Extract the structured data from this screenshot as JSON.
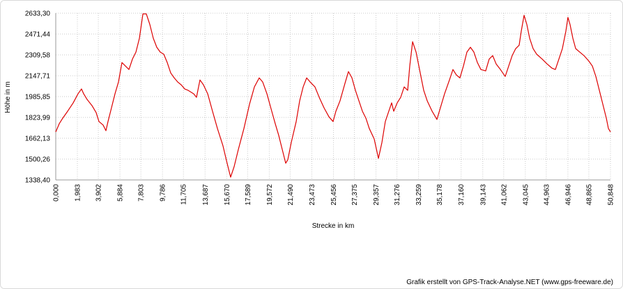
{
  "chart_data": {
    "type": "line",
    "y_label": "Höhe in m",
    "x_label": "Strecke in km",
    "credit": "Grafik erstellt von GPS-Track-Analyse.NET (www.gps-freeware.de)",
    "color": "#dd0000",
    "grid": true,
    "xlim": [
      0,
      50.848
    ],
    "ylim": [
      1338.4,
      2633.3
    ],
    "xticks": [
      {
        "value": 0,
        "label": "0,000"
      },
      {
        "value": 1.983,
        "label": "1,983"
      },
      {
        "value": 3.902,
        "label": "3,902"
      },
      {
        "value": 5.884,
        "label": "5,884"
      },
      {
        "value": 7.803,
        "label": "7,803"
      },
      {
        "value": 9.786,
        "label": "9,786"
      },
      {
        "value": 11.705,
        "label": "11,705"
      },
      {
        "value": 13.687,
        "label": "13,687"
      },
      {
        "value": 15.67,
        "label": "15,670"
      },
      {
        "value": 17.589,
        "label": "17,589"
      },
      {
        "value": 19.572,
        "label": "19,572"
      },
      {
        "value": 21.49,
        "label": "21,490"
      },
      {
        "value": 23.473,
        "label": "23,473"
      },
      {
        "value": 25.456,
        "label": "25,456"
      },
      {
        "value": 27.375,
        "label": "27,375"
      },
      {
        "value": 29.357,
        "label": "29,357"
      },
      {
        "value": 31.276,
        "label": "31,276"
      },
      {
        "value": 33.259,
        "label": "33,259"
      },
      {
        "value": 35.178,
        "label": "35,178"
      },
      {
        "value": 37.16,
        "label": "37,160"
      },
      {
        "value": 39.143,
        "label": "39,143"
      },
      {
        "value": 41.062,
        "label": "41,062"
      },
      {
        "value": 43.045,
        "label": "43,045"
      },
      {
        "value": 44.963,
        "label": "44,963"
      },
      {
        "value": 46.946,
        "label": "46,946"
      },
      {
        "value": 48.865,
        "label": "48,865"
      },
      {
        "value": 50.848,
        "label": "50,848"
      }
    ],
    "yticks": [
      {
        "value": 1338.4,
        "label": "1338,40"
      },
      {
        "value": 1500.26,
        "label": "1500,26"
      },
      {
        "value": 1662.13,
        "label": "1662,13"
      },
      {
        "value": 1823.99,
        "label": "1823,99"
      },
      {
        "value": 1985.85,
        "label": "1985,85"
      },
      {
        "value": 2147.71,
        "label": "2147,71"
      },
      {
        "value": 2309.58,
        "label": "2309,58"
      },
      {
        "value": 2471.44,
        "label": "2471,44"
      },
      {
        "value": 2633.3,
        "label": "2633,30"
      }
    ],
    "x": [
      0,
      0.32,
      0.64,
      1.09,
      1.6,
      2.04,
      2.36,
      2.56,
      2.87,
      3.32,
      3.7,
      3.96,
      4.34,
      4.6,
      4.79,
      5.11,
      5.43,
      5.75,
      6.07,
      6.39,
      6.71,
      7.03,
      7.35,
      7.67,
      7.99,
      8.3,
      8.62,
      8.94,
      9.26,
      9.58,
      9.9,
      10.22,
      10.54,
      10.86,
      11.18,
      11.5,
      11.82,
      12.14,
      12.65,
      12.9,
      13.22,
      13.54,
      13.93,
      14.37,
      14.82,
      15.33,
      15.71,
      16.03,
      16.35,
      16.74,
      17.25,
      17.76,
      18.21,
      18.65,
      18.97,
      19.36,
      19.8,
      20.12,
      20.44,
      20.76,
      21.08,
      21.27,
      21.59,
      22.04,
      22.36,
      22.68,
      23,
      23.32,
      23.76,
      24.15,
      24.59,
      25.04,
      25.42,
      25.68,
      26.06,
      26.51,
      26.83,
      27.15,
      27.47,
      27.79,
      28.11,
      28.43,
      28.74,
      29.19,
      29.58,
      29.9,
      30.21,
      30.53,
      30.79,
      30.98,
      31.3,
      31.62,
      31.94,
      32.26,
      32.45,
      32.71,
      33.03,
      33.41,
      33.73,
      34.05,
      34.5,
      34.94,
      35.26,
      35.64,
      36.09,
      36.41,
      36.73,
      37.05,
      37.37,
      37.69,
      38.01,
      38.33,
      38.65,
      38.97,
      39.41,
      39.73,
      40.05,
      40.37,
      40.76,
      41.2,
      41.52,
      41.84,
      42.16,
      42.48,
      42.67,
      42.93,
      43.18,
      43.44,
      43.76,
      44.08,
      44.59,
      45.04,
      45.48,
      45.8,
      46.12,
      46.44,
      46.76,
      46.95,
      47.14,
      47.4,
      47.66,
      48.04,
      48.42,
      48.87,
      49.19,
      49.51,
      49.83,
      50.15,
      50.47,
      50.66,
      50.85
    ],
    "values": [
      1711,
      1775,
      1818,
      1872,
      1937,
      2007,
      2045,
      2007,
      1964,
      1916,
      1862,
      1792,
      1765,
      1721,
      1792,
      1899,
      2007,
      2099,
      2250,
      2223,
      2196,
      2277,
      2331,
      2439,
      2628,
      2628,
      2547,
      2439,
      2369,
      2331,
      2315,
      2250,
      2169,
      2131,
      2099,
      2077,
      2045,
      2034,
      2007,
      1980,
      2115,
      2077,
      2007,
      1872,
      1738,
      1603,
      1468,
      1360,
      1441,
      1576,
      1738,
      1926,
      2061,
      2131,
      2099,
      2007,
      1872,
      1775,
      1684,
      1576,
      1468,
      1495,
      1630,
      1792,
      1953,
      2061,
      2131,
      2099,
      2061,
      1980,
      1899,
      1829,
      1792,
      1872,
      1953,
      2088,
      2180,
      2131,
      2034,
      1953,
      1872,
      1818,
      1738,
      1657,
      1506,
      1630,
      1792,
      1872,
      1937,
      1872,
      1937,
      1980,
      2061,
      2034,
      2223,
      2412,
      2331,
      2169,
      2034,
      1953,
      1872,
      1808,
      1899,
      2007,
      2115,
      2196,
      2153,
      2131,
      2223,
      2331,
      2369,
      2331,
      2250,
      2196,
      2185,
      2277,
      2304,
      2239,
      2196,
      2142,
      2223,
      2304,
      2358,
      2385,
      2493,
      2617,
      2547,
      2439,
      2358,
      2315,
      2277,
      2239,
      2207,
      2196,
      2277,
      2358,
      2493,
      2601,
      2547,
      2439,
      2358,
      2331,
      2304,
      2261,
      2223,
      2142,
      2034,
      1926,
      1818,
      1738,
      1711
    ]
  }
}
